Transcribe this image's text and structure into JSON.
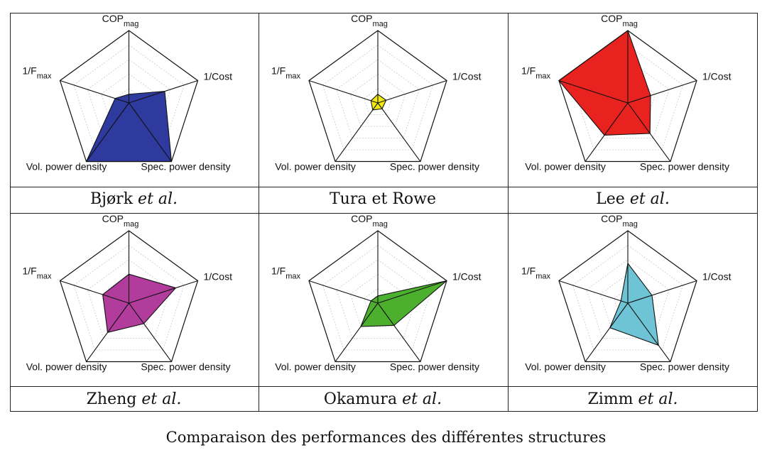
{
  "figure_caption": "Comparaison des performances des différentes structures",
  "chart_data": [
    {
      "type": "radar",
      "name_main": "Bjørk",
      "name_suffix": "et al.",
      "color": "#2e3a9e",
      "axes": [
        "COP_mag",
        "1/Cost",
        "Spec. power density",
        "Vol. power density",
        "1/F_max"
      ],
      "axis_labels": {
        "cop": "COP",
        "cop_sub": "mag",
        "cost": "1/Cost",
        "spec": "Spec. power density",
        "vol": "Vol. power density",
        "fmax": "1/F",
        "fmax_sub": "max"
      },
      "values": [
        0.12,
        0.52,
        1.0,
        1.0,
        0.2
      ],
      "rmax": 1.0
    },
    {
      "type": "radar",
      "name_main": "Tura et Rowe",
      "name_suffix": "",
      "color": "#f2ea12",
      "axes": [
        "COP_mag",
        "1/Cost",
        "Spec. power density",
        "Vol. power density",
        "1/F_max"
      ],
      "axis_labels": {
        "cop": "COP",
        "cop_sub": "mag",
        "cost": "1/Cost",
        "spec": "Spec. power density",
        "vol": "Vol. power density",
        "fmax": "1/F",
        "fmax_sub": "max"
      },
      "values": [
        0.12,
        0.12,
        0.1,
        0.12,
        0.1
      ],
      "rmax": 1.0
    },
    {
      "type": "radar",
      "name_main": "Lee",
      "name_suffix": "et al.",
      "color": "#e8221e",
      "axes": [
        "COP_mag",
        "1/Cost",
        "Spec. power density",
        "Vol. power density",
        "1/F_max"
      ],
      "axis_labels": {
        "cop": "COP",
        "cop_sub": "mag",
        "cost": "1/Cost",
        "spec": "Spec. power density",
        "vol": "Vol. power density",
        "fmax": "1/F",
        "fmax_sub": "max"
      },
      "values": [
        1.0,
        0.33,
        0.52,
        0.55,
        1.0
      ],
      "rmax": 1.0
    },
    {
      "type": "radar",
      "name_main": "Zheng",
      "name_suffix": "et al.",
      "color": "#b13c9c",
      "axes": [
        "COP_mag",
        "1/Cost",
        "Spec. power density",
        "Vol. power density",
        "1/F_max"
      ],
      "axis_labels": {
        "cop": "COP",
        "cop_sub": "mag",
        "cost": "1/Cost",
        "spec": "Spec. power density",
        "vol": "Vol. power density",
        "fmax": "1/F",
        "fmax_sub": "max"
      },
      "values": [
        0.4,
        0.68,
        0.35,
        0.5,
        0.38
      ],
      "rmax": 1.0
    },
    {
      "type": "radar",
      "name_main": "Okamura",
      "name_suffix": "et al.",
      "color": "#4cb02e",
      "axes": [
        "COP_mag",
        "1/Cost",
        "Spec. power density",
        "Vol. power density",
        "1/F_max"
      ],
      "axis_labels": {
        "cop": "COP",
        "cop_sub": "mag",
        "cost": "1/Cost",
        "spec": "Spec. power density",
        "vol": "Vol. power density",
        "fmax": "1/F",
        "fmax_sub": "max"
      },
      "values": [
        0.1,
        1.0,
        0.38,
        0.4,
        0.1
      ],
      "rmax": 1.0
    },
    {
      "type": "radar",
      "name_main": "Zimm",
      "name_suffix": "et al.",
      "color": "#6ec4d4",
      "axes": [
        "COP_mag",
        "1/Cost",
        "Spec. power density",
        "Vol. power density",
        "1/F_max"
      ],
      "axis_labels": {
        "cop": "COP",
        "cop_sub": "mag",
        "cost": "1/Cost",
        "spec": "Spec. power density",
        "vol": "Vol. power density",
        "fmax": "1/F",
        "fmax_sub": "max"
      },
      "values": [
        0.55,
        0.35,
        0.72,
        0.42,
        0.1
      ],
      "rmax": 1.0
    }
  ]
}
